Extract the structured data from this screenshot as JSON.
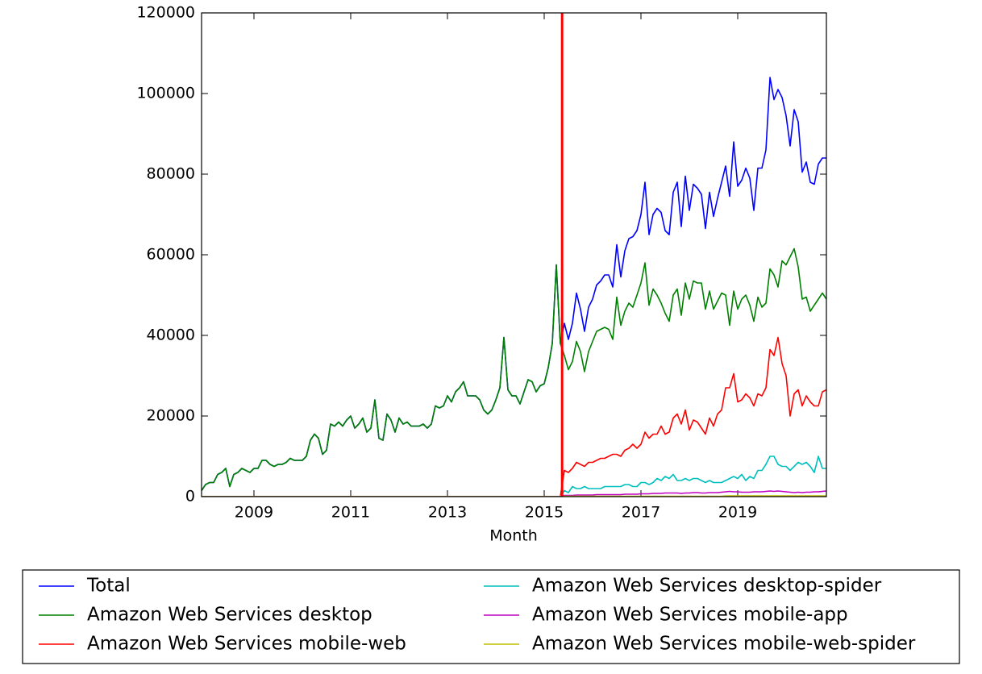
{
  "chart_data": {
    "type": "line",
    "x_label": "Month",
    "x": [
      2007.917,
      2008.0,
      2008.083,
      2008.167,
      2008.25,
      2008.333,
      2008.417,
      2008.5,
      2008.583,
      2008.667,
      2008.75,
      2008.833,
      2008.917,
      2009.0,
      2009.083,
      2009.167,
      2009.25,
      2009.333,
      2009.417,
      2009.5,
      2009.583,
      2009.667,
      2009.75,
      2009.833,
      2009.917,
      2010.0,
      2010.083,
      2010.167,
      2010.25,
      2010.333,
      2010.417,
      2010.5,
      2010.583,
      2010.667,
      2010.75,
      2010.833,
      2010.917,
      2011.0,
      2011.083,
      2011.167,
      2011.25,
      2011.333,
      2011.417,
      2011.5,
      2011.583,
      2011.667,
      2011.75,
      2011.833,
      2011.917,
      2012.0,
      2012.083,
      2012.167,
      2012.25,
      2012.333,
      2012.417,
      2012.5,
      2012.583,
      2012.667,
      2012.75,
      2012.833,
      2012.917,
      2013.0,
      2013.083,
      2013.167,
      2013.25,
      2013.333,
      2013.417,
      2013.5,
      2013.583,
      2013.667,
      2013.75,
      2013.833,
      2013.917,
      2014.0,
      2014.083,
      2014.167,
      2014.25,
      2014.333,
      2014.417,
      2014.5,
      2014.583,
      2014.667,
      2014.75,
      2014.833,
      2014.917,
      2015.0,
      2015.083,
      2015.167,
      2015.25,
      2015.333,
      2015.417,
      2015.5,
      2015.583,
      2015.667,
      2015.75,
      2015.833,
      2015.917,
      2016.0,
      2016.083,
      2016.167,
      2016.25,
      2016.333,
      2016.417,
      2016.5,
      2016.583,
      2016.667,
      2016.75,
      2016.833,
      2016.917,
      2017.0,
      2017.083,
      2017.167,
      2017.25,
      2017.333,
      2017.417,
      2017.5,
      2017.583,
      2017.667,
      2017.75,
      2017.833,
      2017.917,
      2018.0,
      2018.083,
      2018.167,
      2018.25,
      2018.333,
      2018.417,
      2018.5,
      2018.583,
      2018.667,
      2018.75,
      2018.833,
      2018.917,
      2019.0,
      2019.083,
      2019.167,
      2019.25,
      2019.333,
      2019.417,
      2019.5,
      2019.583,
      2019.667,
      2019.75,
      2019.833,
      2019.917,
      2020.0,
      2020.083,
      2020.167,
      2020.25,
      2020.333,
      2020.417,
      2020.5,
      2020.583,
      2020.667,
      2020.75,
      2020.833
    ],
    "series": [
      {
        "name": "Total",
        "color": "#0000ff",
        "values": [
          1500,
          3000,
          3500,
          3500,
          5500,
          6000,
          7000,
          2500,
          5500,
          6000,
          7000,
          6500,
          6000,
          7000,
          7000,
          9000,
          9000,
          8000,
          7500,
          8000,
          8000,
          8500,
          9500,
          9000,
          9000,
          9000,
          10000,
          14000,
          15500,
          14500,
          10500,
          11500,
          18000,
          17500,
          18500,
          17500,
          19000,
          20000,
          17000,
          18000,
          19500,
          16000,
          17000,
          24000,
          14500,
          14000,
          20500,
          19000,
          16000,
          19500,
          18000,
          18500,
          17500,
          17500,
          17500,
          18000,
          17000,
          18000,
          22500,
          22000,
          22500,
          25000,
          23500,
          26000,
          27000,
          28500,
          25000,
          25000,
          25000,
          24000,
          21500,
          20500,
          21500,
          24000,
          27000,
          39500,
          26500,
          25000,
          25000,
          23000,
          26000,
          29000,
          28500,
          26000,
          27500,
          28000,
          32000,
          38000,
          57500,
          38000,
          43000,
          39000,
          43000,
          50500,
          46500,
          41000,
          47000,
          49000,
          52500,
          53500,
          55000,
          55000,
          52000,
          62500,
          54500,
          61000,
          64000,
          64500,
          66000,
          70000,
          78000,
          65000,
          70000,
          71500,
          70500,
          66000,
          65000,
          75500,
          78000,
          67000,
          79500,
          71000,
          77500,
          76500,
          75000,
          66500,
          75500,
          69500,
          74000,
          78000,
          82000,
          74500,
          88000,
          77000,
          78500,
          81500,
          79000,
          71000,
          81500,
          81500,
          86000,
          104000,
          98500,
          101000,
          99000,
          94500,
          87000,
          96000,
          93000,
          80500,
          83000,
          78000,
          77500,
          82500,
          84000,
          84000
        ]
      },
      {
        "name": "Amazon Web Services desktop",
        "color": "#008000",
        "values": [
          1500,
          3000,
          3500,
          3500,
          5500,
          6000,
          7000,
          2500,
          5500,
          6000,
          7000,
          6500,
          6000,
          7000,
          7000,
          9000,
          9000,
          8000,
          7500,
          8000,
          8000,
          8500,
          9500,
          9000,
          9000,
          9000,
          10000,
          14000,
          15500,
          14500,
          10500,
          11500,
          18000,
          17500,
          18500,
          17500,
          19000,
          20000,
          17000,
          18000,
          19500,
          16000,
          17000,
          24000,
          14500,
          14000,
          20500,
          19000,
          16000,
          19500,
          18000,
          18500,
          17500,
          17500,
          17500,
          18000,
          17000,
          18000,
          22500,
          22000,
          22500,
          25000,
          23500,
          26000,
          27000,
          28500,
          25000,
          25000,
          25000,
          24000,
          21500,
          20500,
          21500,
          24000,
          27000,
          39500,
          26500,
          25000,
          25000,
          23000,
          26000,
          29000,
          28500,
          26000,
          27500,
          28000,
          32000,
          38000,
          57500,
          38000,
          35000,
          31500,
          33500,
          38500,
          36000,
          31000,
          36000,
          38500,
          41000,
          41500,
          42000,
          41500,
          39000,
          49500,
          42500,
          46000,
          48000,
          47000,
          50000,
          53000,
          58000,
          47500,
          51500,
          50000,
          48000,
          45500,
          43500,
          50000,
          51500,
          45000,
          53000,
          49000,
          53500,
          53000,
          53000,
          46500,
          51000,
          46500,
          48500,
          50500,
          50000,
          42500,
          51000,
          46500,
          49000,
          50000,
          47500,
          43500,
          49500,
          47000,
          48000,
          56500,
          55000,
          52000,
          58500,
          57500,
          59500,
          61500,
          57000,
          49000,
          49500,
          46000,
          47500,
          49000,
          50500,
          49000
        ]
      },
      {
        "name": "Amazon Web Services mobile-web",
        "color": "#ff0000",
        "values": [
          0,
          0,
          0,
          0,
          0,
          0,
          0,
          0,
          0,
          0,
          0,
          0,
          0,
          0,
          0,
          0,
          0,
          0,
          0,
          0,
          0,
          0,
          0,
          0,
          0,
          0,
          0,
          0,
          0,
          0,
          0,
          0,
          0,
          0,
          0,
          0,
          0,
          0,
          0,
          0,
          0,
          0,
          0,
          0,
          0,
          0,
          0,
          0,
          0,
          0,
          0,
          0,
          0,
          0,
          0,
          0,
          0,
          0,
          0,
          0,
          0,
          0,
          0,
          0,
          0,
          0,
          0,
          0,
          0,
          0,
          0,
          0,
          0,
          0,
          0,
          0,
          0,
          0,
          0,
          0,
          0,
          0,
          0,
          0,
          0,
          0,
          0,
          0,
          0,
          0,
          6500,
          6000,
          7000,
          8500,
          8000,
          7500,
          8500,
          8500,
          9000,
          9500,
          9500,
          10000,
          10500,
          10500,
          10000,
          11500,
          12000,
          13000,
          12000,
          13000,
          16000,
          14500,
          15500,
          15500,
          17500,
          15500,
          16000,
          19500,
          20500,
          18000,
          21500,
          16500,
          19000,
          18500,
          17000,
          15500,
          19500,
          17500,
          20500,
          21500,
          27000,
          27000,
          30500,
          23500,
          24000,
          25500,
          24500,
          22500,
          25500,
          25000,
          27000,
          36500,
          35000,
          39500,
          33000,
          30000,
          20000,
          25500,
          26500,
          22500,
          25000,
          23500,
          22500,
          22500,
          26000,
          26500
        ]
      },
      {
        "name": "Amazon Web Services desktop-spider",
        "color": "#00bfbf",
        "values": [
          0,
          0,
          0,
          0,
          0,
          0,
          0,
          0,
          0,
          0,
          0,
          0,
          0,
          0,
          0,
          0,
          0,
          0,
          0,
          0,
          0,
          0,
          0,
          0,
          0,
          0,
          0,
          0,
          0,
          0,
          0,
          0,
          0,
          0,
          0,
          0,
          0,
          0,
          0,
          0,
          0,
          0,
          0,
          0,
          0,
          0,
          0,
          0,
          0,
          0,
          0,
          0,
          0,
          0,
          0,
          0,
          0,
          0,
          0,
          0,
          0,
          0,
          0,
          0,
          0,
          0,
          0,
          0,
          0,
          0,
          0,
          0,
          0,
          0,
          0,
          0,
          0,
          0,
          0,
          0,
          0,
          0,
          0,
          0,
          0,
          0,
          0,
          0,
          0,
          0,
          1500,
          1000,
          2500,
          2000,
          2000,
          2500,
          2000,
          2000,
          2000,
          2000,
          2500,
          2500,
          2500,
          2500,
          2500,
          3000,
          3000,
          2500,
          2500,
          3500,
          3500,
          3000,
          3500,
          4500,
          4000,
          5000,
          4500,
          5500,
          4000,
          4000,
          4500,
          4000,
          4500,
          4500,
          4000,
          3500,
          4000,
          3500,
          3500,
          3500,
          4000,
          4500,
          5000,
          4500,
          5500,
          4000,
          5000,
          4500,
          6500,
          6500,
          8000,
          10000,
          10000,
          8000,
          7500,
          7500,
          6500,
          7500,
          8500,
          8000,
          8500,
          7500,
          6000,
          10000,
          7000,
          7000
        ]
      },
      {
        "name": "Amazon Web Services mobile-app",
        "color": "#bf00bf",
        "values": [
          0,
          0,
          0,
          0,
          0,
          0,
          0,
          0,
          0,
          0,
          0,
          0,
          0,
          0,
          0,
          0,
          0,
          0,
          0,
          0,
          0,
          0,
          0,
          0,
          0,
          0,
          0,
          0,
          0,
          0,
          0,
          0,
          0,
          0,
          0,
          0,
          0,
          0,
          0,
          0,
          0,
          0,
          0,
          0,
          0,
          0,
          0,
          0,
          0,
          0,
          0,
          0,
          0,
          0,
          0,
          0,
          0,
          0,
          0,
          0,
          0,
          0,
          0,
          0,
          0,
          0,
          0,
          0,
          0,
          0,
          0,
          0,
          0,
          0,
          0,
          0,
          0,
          0,
          0,
          0,
          0,
          0,
          0,
          0,
          0,
          0,
          0,
          0,
          0,
          0,
          300,
          300,
          300,
          400,
          400,
          400,
          400,
          400,
          500,
          500,
          500,
          500,
          500,
          500,
          500,
          600,
          600,
          600,
          600,
          700,
          700,
          700,
          800,
          800,
          800,
          900,
          900,
          900,
          900,
          800,
          900,
          900,
          1000,
          1000,
          900,
          900,
          1000,
          1000,
          1000,
          1100,
          1200,
          1300,
          1200,
          1200,
          1100,
          1100,
          1100,
          1200,
          1200,
          1200,
          1300,
          1400,
          1300,
          1400,
          1300,
          1200,
          1100,
          1000,
          1100,
          1000,
          1100,
          1100,
          1200,
          1200,
          1300,
          1400
        ]
      },
      {
        "name": "Amazon Web Services mobile-web-spider",
        "color": "#bfbf00",
        "values": [
          0,
          0,
          0,
          0,
          0,
          0,
          0,
          0,
          0,
          0,
          0,
          0,
          0,
          0,
          0,
          0,
          0,
          0,
          0,
          0,
          0,
          0,
          0,
          0,
          0,
          0,
          0,
          0,
          0,
          0,
          0,
          0,
          0,
          0,
          0,
          0,
          0,
          0,
          0,
          0,
          0,
          0,
          0,
          0,
          0,
          0,
          0,
          0,
          0,
          0,
          0,
          0,
          0,
          0,
          0,
          0,
          0,
          0,
          0,
          0,
          0,
          0,
          0,
          0,
          0,
          0,
          0,
          0,
          0,
          0,
          0,
          0,
          0,
          0,
          0,
          0,
          0,
          0,
          0,
          0,
          0,
          0,
          0,
          0,
          0,
          0,
          0,
          0,
          0,
          0,
          100,
          100,
          100,
          100,
          100,
          100,
          100,
          100,
          100,
          100,
          100,
          100,
          100,
          100,
          100,
          100,
          100,
          100,
          100,
          100,
          100,
          100,
          100,
          100,
          100,
          100,
          100,
          100,
          100,
          100,
          100,
          100,
          100,
          100,
          100,
          100,
          100,
          100,
          100,
          100,
          200,
          200,
          200,
          200,
          200,
          200,
          200,
          200,
          200,
          200,
          200,
          200,
          200,
          200,
          200,
          200,
          200,
          200,
          200,
          200,
          200,
          200,
          200,
          200,
          200,
          200
        ]
      }
    ],
    "vline": {
      "x": 2015.37,
      "color": "#ff0000"
    },
    "xlim": [
      2007.917,
      2020.833
    ],
    "xticks": [
      2009,
      2011,
      2013,
      2015,
      2017,
      2019
    ],
    "ylim": [
      0,
      120000
    ],
    "yticks": [
      0,
      20000,
      40000,
      60000,
      80000,
      100000,
      120000
    ],
    "grid": false,
    "legend": {
      "position": "below",
      "columns": 2
    }
  }
}
